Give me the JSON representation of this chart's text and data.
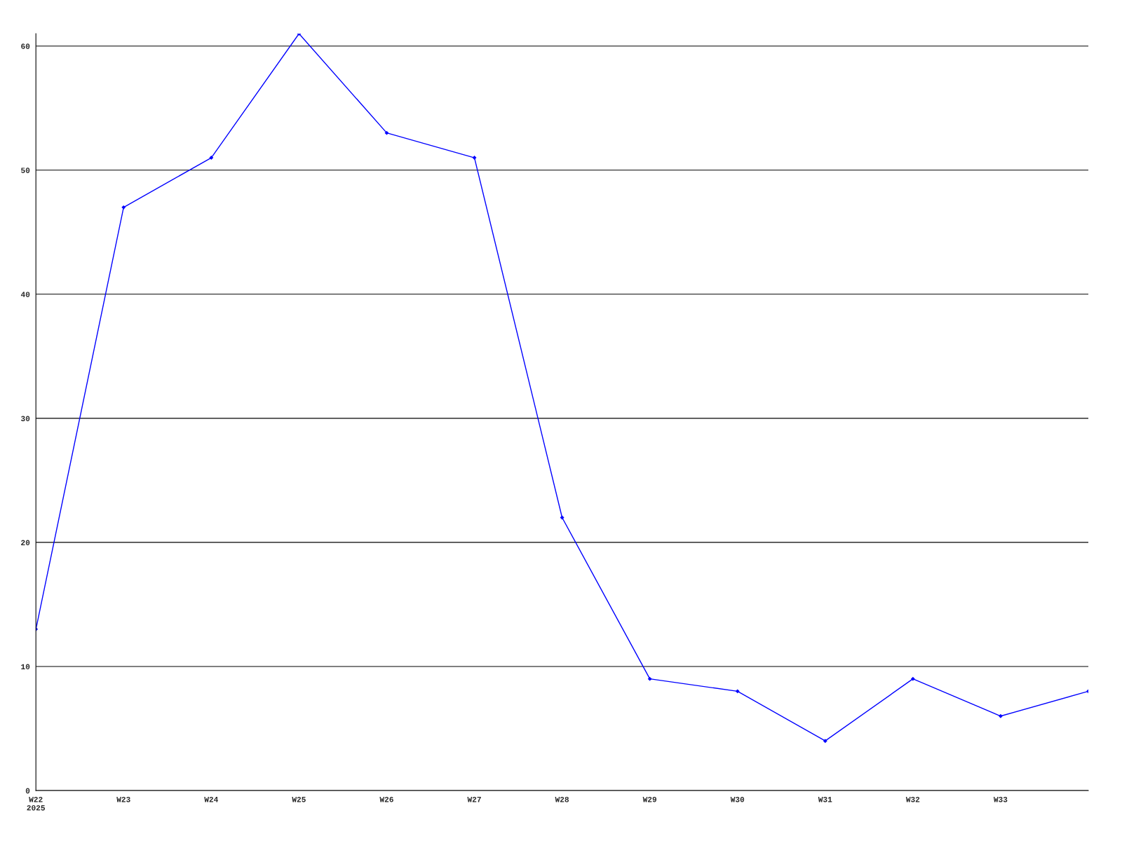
{
  "chart_data": {
    "type": "line",
    "categories": [
      "W22\n2025",
      "W23",
      "W24",
      "W25",
      "W26",
      "W27",
      "W28",
      "W29",
      "W30",
      "W31",
      "W32",
      "W33",
      null
    ],
    "series": [
      {
        "color": "#0000ff",
        "values": [
          13,
          47,
          51,
          61,
          53,
          51,
          22,
          9,
          8,
          4,
          9,
          6,
          8
        ]
      }
    ],
    "ylim": [
      0,
      61
    ],
    "yticks": [
      0,
      10,
      20,
      30,
      40,
      50,
      60
    ],
    "grid": "y",
    "marker": "diamond",
    "line_style": "solid"
  }
}
